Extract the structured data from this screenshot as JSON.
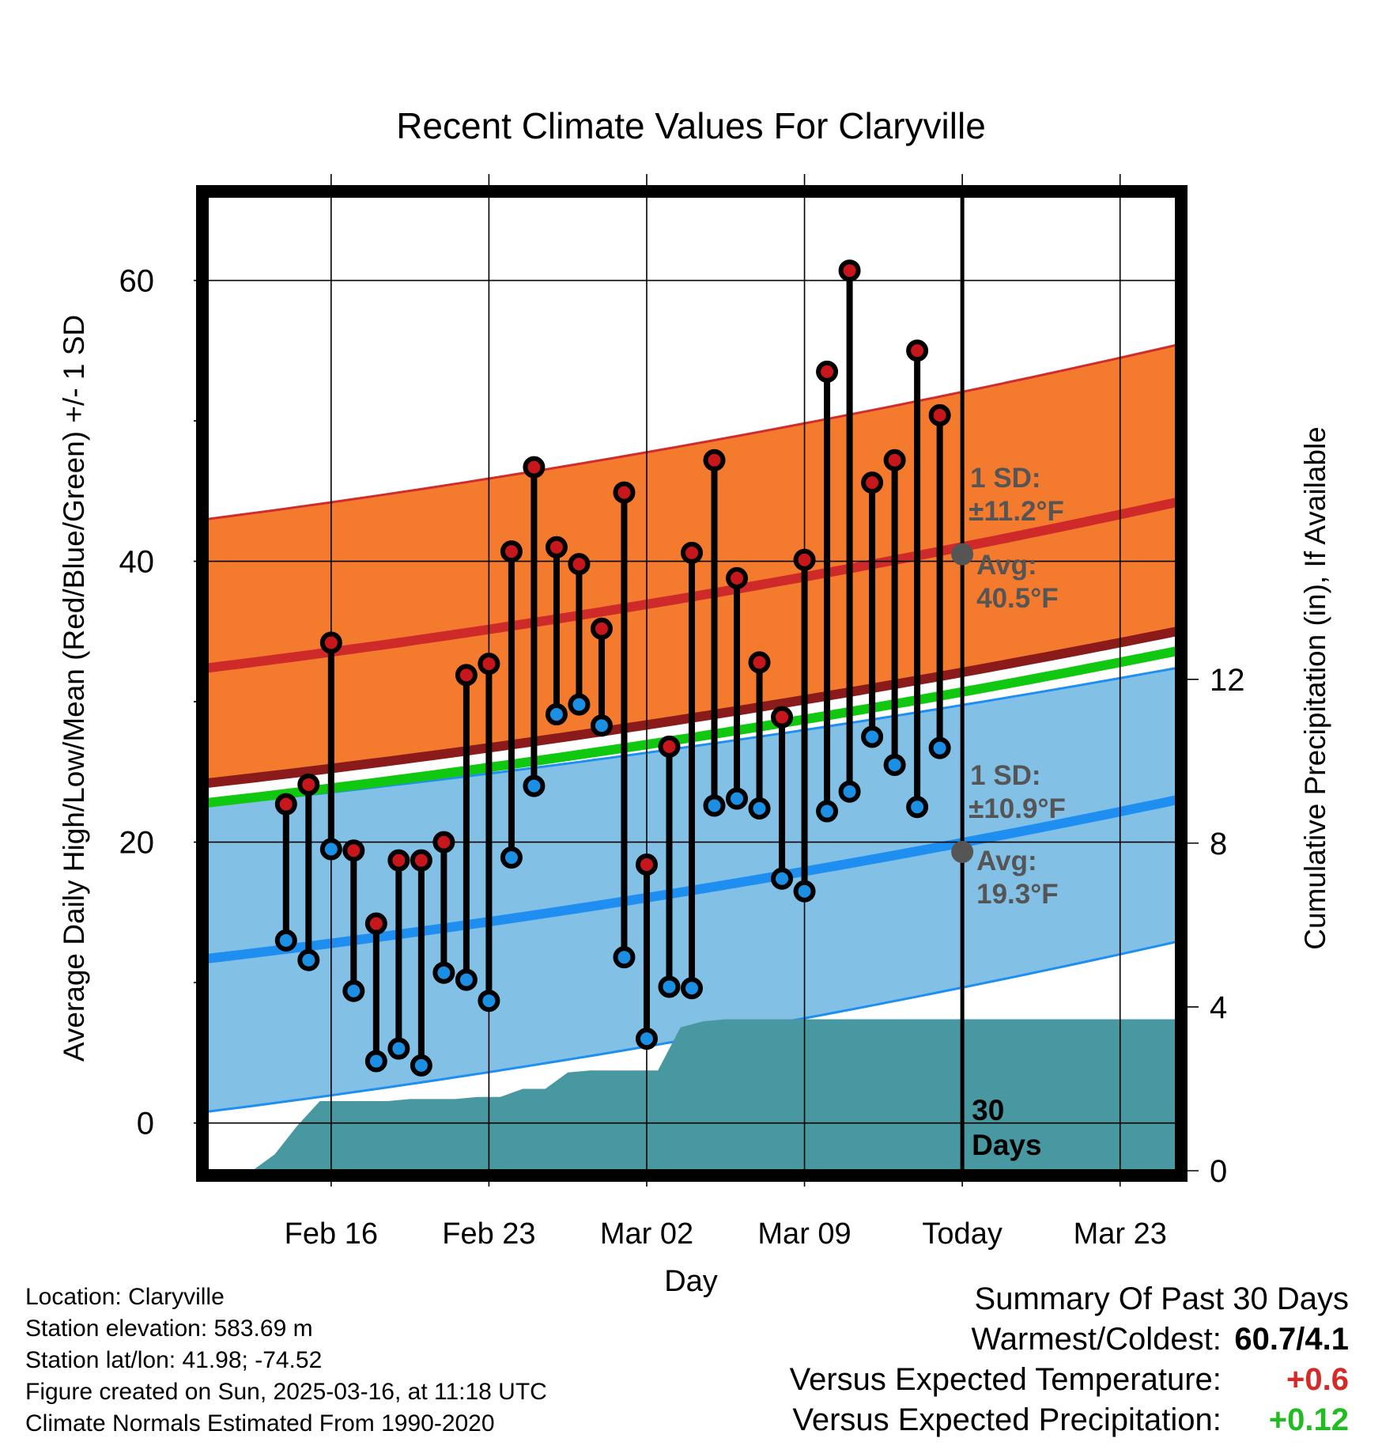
{
  "chart_data": {
    "type": "line",
    "title": "Recent Climate Values For Claryville",
    "xlabel": "Day",
    "ylabel": "Average Daily High/Low/Mean (Red/Blue/Green) +/- 1 SD",
    "ylabel_right": "Cumulative Precipitation (in), If Available",
    "x_tick_labels": [
      "Feb 16",
      "Feb 23",
      "Mar 02",
      "Mar 09",
      "Today",
      "Mar 23"
    ],
    "y_ticks": [
      0,
      20,
      40,
      60
    ],
    "y_right_ticks": [
      0,
      4,
      8,
      12
    ],
    "ylim": [
      -3.4,
      66
    ],
    "ylim_right": [
      0,
      23.8
    ],
    "x_range_days": [
      -33.5,
      9.5
    ],
    "grid": true,
    "days": [
      -30,
      -29,
      -28,
      -27,
      -26,
      -25,
      -24,
      -23,
      -22,
      -21,
      -20,
      -19,
      -18,
      -17,
      -16,
      -15,
      -14,
      -13,
      -12,
      -11,
      -10,
      -9,
      -8,
      -7,
      -6,
      -5,
      -4,
      -3,
      -2,
      -1
    ],
    "series": [
      {
        "name": "High",
        "color": "#c8161d",
        "values": [
          22.7,
          24.1,
          34.2,
          19.4,
          14.2,
          18.7,
          18.7,
          20.0,
          31.9,
          32.7,
          40.7,
          46.7,
          41.0,
          39.8,
          35.2,
          44.9,
          18.4,
          26.8,
          40.6,
          47.2,
          38.8,
          32.8,
          28.9,
          40.1,
          53.5,
          60.7,
          45.6,
          47.2,
          55.0,
          50.4
        ]
      },
      {
        "name": "Low",
        "color": "#1a8fe3",
        "values": [
          13.0,
          11.6,
          19.5,
          9.4,
          4.4,
          5.3,
          4.1,
          10.7,
          10.2,
          8.7,
          18.9,
          24.0,
          29.1,
          29.8,
          28.3,
          11.8,
          6.0,
          9.7,
          9.6,
          22.6,
          23.1,
          22.4,
          17.4,
          16.5,
          22.2,
          23.6,
          27.5,
          25.5,
          22.5,
          26.7
        ]
      }
    ],
    "normals": {
      "high_avg": [
        32.4,
        44.2
      ],
      "high_sd_band_lower": [
        24.0,
        35.2
      ],
      "high_sd_band_upper": [
        43.0,
        55.4
      ],
      "low_avg": [
        11.7,
        23.0
      ],
      "low_sd_band_lower": [
        0.8,
        12.9
      ],
      "low_sd_band_upper": [
        22.6,
        32.4
      ],
      "mean_avg": [
        22.8,
        33.6
      ],
      "colors": {
        "high_band": "#f47b2e",
        "high_line": "#cf2a2a",
        "low_band": "#82c0e6",
        "low_line": "#1e8ff0",
        "mean_line": "#10c810",
        "precip": "#4898a1",
        "overlap": "#8b1a1a",
        "frame": "#000000"
      }
    },
    "precip_cumulative": {
      "days": [
        -32.5,
        -31.5,
        -30.5,
        -29.5,
        -28.5,
        -27.5,
        -26.5,
        -25.5,
        -24.5,
        -23.5,
        -22.5,
        -21.5,
        -20.5,
        -19.5,
        -18.5,
        -17.5,
        -16.5,
        -15.5,
        -14.5,
        -13.5,
        -12.5,
        -11.5,
        -10.5,
        -9.5,
        9.5
      ],
      "values": [
        0.0,
        0.0,
        0.4,
        1.1,
        1.7,
        1.7,
        1.7,
        1.7,
        1.75,
        1.75,
        1.75,
        1.8,
        1.8,
        2.0,
        2.0,
        2.4,
        2.45,
        2.45,
        2.45,
        2.45,
        3.5,
        3.65,
        3.7,
        3.7,
        3.7
      ]
    },
    "annotations": {
      "high_sd": "1 SD:",
      "high_sd_value": "±11.2°F",
      "high_avg_label": "Avg:",
      "high_avg_value": "40.5°F",
      "high_avg_today": 40.5,
      "low_sd": "1 SD:",
      "low_sd_value": "±10.9°F",
      "low_avg_label": "Avg:",
      "low_avg_value": "19.3°F",
      "low_avg_today": 19.3,
      "days_count": "30",
      "days_word": "Days"
    }
  },
  "station_info": [
    "Location: Claryville",
    "Station elevation: 583.69 m",
    "Station lat/lon: 41.98; -74.52",
    "Figure created on Sun, 2025-03-16, at 11:18 UTC",
    "Climate Normals Estimated From 1990-2020"
  ],
  "summary": {
    "title": "Summary Of Past 30 Days",
    "warmest_coldest_label": "Warmest/Coldest:",
    "warmest_coldest_value": "60.7/4.1",
    "temp_label": "Versus Expected Temperature:",
    "temp_value": "+0.6",
    "temp_color": "#d42a2a",
    "precip_label": "Versus Expected Precipitation:",
    "precip_value": "+0.12",
    "precip_color": "#22bb22"
  }
}
